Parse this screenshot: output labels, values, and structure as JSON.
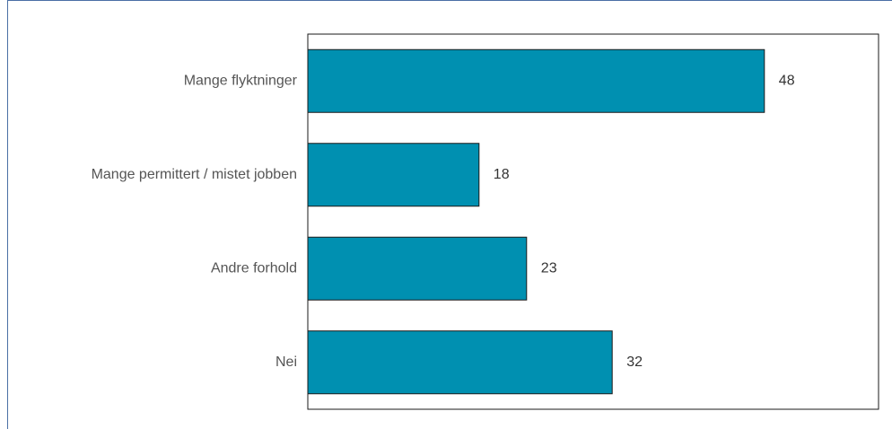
{
  "chart_data": {
    "type": "bar",
    "orientation": "horizontal",
    "categories": [
      "Mange flyktninger",
      "Mange permittert / mistet jobben",
      "Andre forhold",
      "Nei"
    ],
    "values": [
      48,
      18,
      23,
      32
    ],
    "xlim": [
      0,
      60
    ],
    "grid": false,
    "legend": "none",
    "title": "",
    "xlabel": "",
    "ylabel": "",
    "bar_color": "#0090b1",
    "bar_edge_color": "#1a1a1a"
  },
  "colors": {
    "frame_border": "#4a6fa5",
    "background": "#ffffff"
  }
}
